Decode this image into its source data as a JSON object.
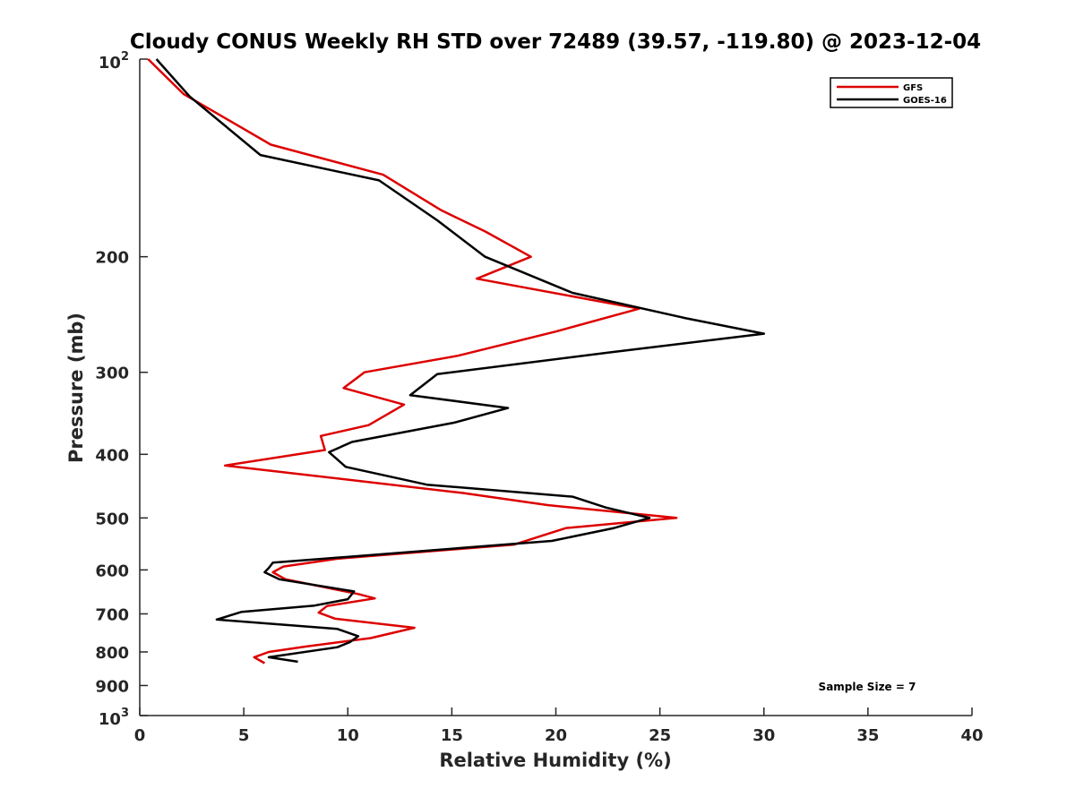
{
  "chart_data": {
    "type": "line",
    "title": "Cloudy CONUS Weekly RH STD over 72489 (39.57, -119.80) @ 2023-12-04",
    "xlabel": "Relative Humidity (%)",
    "ylabel": "Pressure (mb)",
    "xlim": [
      0,
      40
    ],
    "ylim": [
      100,
      1000
    ],
    "y_scale": "log",
    "y_reversed": true,
    "grid": false,
    "legend_position": "top-right",
    "x_ticks": [
      "0",
      "5",
      "10",
      "15",
      "20",
      "25",
      "30",
      "35",
      "40"
    ],
    "y_ticks": [
      {
        "value": 100,
        "base": "10",
        "exp": "2"
      },
      {
        "value": 200,
        "label": "200"
      },
      {
        "value": 300,
        "label": "300"
      },
      {
        "value": 400,
        "label": "400"
      },
      {
        "value": 500,
        "label": "500"
      },
      {
        "value": 600,
        "label": "600"
      },
      {
        "value": 700,
        "label": "700"
      },
      {
        "value": 800,
        "label": "800"
      },
      {
        "value": 900,
        "label": "900"
      },
      {
        "value": 1000,
        "base": "10",
        "exp": "3"
      }
    ],
    "annotation": "Sample Size = 7",
    "series": [
      {
        "name": "GFS",
        "color": "#dd0000",
        "points": [
          [
            0.4,
            100
          ],
          [
            2.1,
            113
          ],
          [
            6.3,
            135
          ],
          [
            11.7,
            150
          ],
          [
            14.5,
            170
          ],
          [
            16.6,
            183
          ],
          [
            18.8,
            200
          ],
          [
            16.2,
            216
          ],
          [
            24.0,
            240
          ],
          [
            20.0,
            260
          ],
          [
            15.3,
            283
          ],
          [
            10.8,
            300
          ],
          [
            9.8,
            317
          ],
          [
            12.7,
            336
          ],
          [
            11.0,
            361
          ],
          [
            8.7,
            375
          ],
          [
            8.9,
            394
          ],
          [
            4.1,
            416
          ],
          [
            15.5,
            458
          ],
          [
            19.6,
            478
          ],
          [
            25.8,
            500
          ],
          [
            20.5,
            518
          ],
          [
            18.0,
            549
          ],
          [
            9.5,
            577
          ],
          [
            6.9,
            593
          ],
          [
            6.4,
            605
          ],
          [
            7.0,
            620
          ],
          [
            10.5,
            653
          ],
          [
            11.3,
            663
          ],
          [
            9.0,
            681
          ],
          [
            8.6,
            697
          ],
          [
            9.4,
            712
          ],
          [
            13.2,
            735
          ],
          [
            11.1,
            762
          ],
          [
            8.0,
            785
          ],
          [
            6.2,
            800
          ],
          [
            5.5,
            815
          ],
          [
            6.0,
            832
          ]
        ]
      },
      {
        "name": "GOES-16",
        "color": "#000000",
        "points": [
          [
            0.8,
            100
          ],
          [
            2.4,
            114
          ],
          [
            5.8,
            140
          ],
          [
            11.5,
            153
          ],
          [
            14.3,
            176
          ],
          [
            16.6,
            200
          ],
          [
            20.8,
            227
          ],
          [
            26.2,
            248
          ],
          [
            30.0,
            262
          ],
          [
            22.5,
            280
          ],
          [
            14.3,
            302
          ],
          [
            13.0,
            325
          ],
          [
            17.7,
            340
          ],
          [
            15.1,
            358
          ],
          [
            10.2,
            383
          ],
          [
            9.1,
            397
          ],
          [
            9.9,
            418
          ],
          [
            13.8,
            445
          ],
          [
            20.8,
            464
          ],
          [
            22.4,
            482
          ],
          [
            24.5,
            500
          ],
          [
            22.8,
            518
          ],
          [
            19.8,
            542
          ],
          [
            6.4,
            585
          ],
          [
            6.2,
            596
          ],
          [
            6.0,
            605
          ],
          [
            6.7,
            620
          ],
          [
            10.3,
            647
          ],
          [
            10.0,
            665
          ],
          [
            8.4,
            680
          ],
          [
            4.9,
            695
          ],
          [
            3.7,
            714
          ],
          [
            9.5,
            738
          ],
          [
            10.5,
            757
          ],
          [
            10.1,
            773
          ],
          [
            9.5,
            787
          ],
          [
            6.2,
            815
          ],
          [
            7.6,
            828
          ]
        ]
      }
    ]
  },
  "colors": {
    "axis": "#262626",
    "background": "#ffffff"
  }
}
